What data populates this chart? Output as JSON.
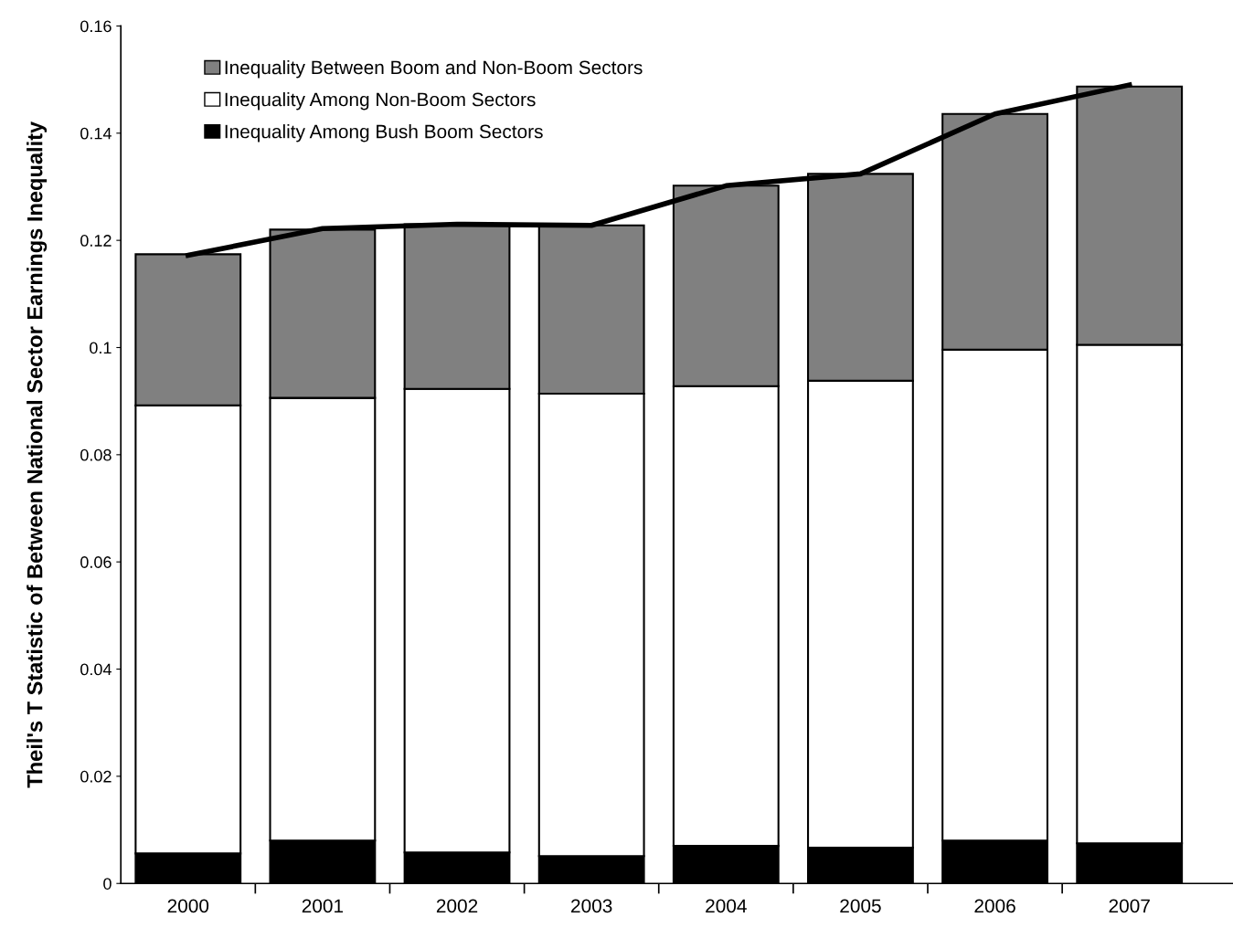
{
  "chart_data": {
    "type": "bar",
    "stacked": true,
    "ylabel": "Theil's T Statistic of Between National Sector Earnings Inequality",
    "categories": [
      "2000",
      "2001",
      "2002",
      "2003",
      "2004",
      "2005",
      "2006",
      "2007"
    ],
    "series": [
      {
        "name": "Inequality Among Bush Boom Sectors",
        "color": "#000000",
        "values": [
          0.0056,
          0.008,
          0.0058,
          0.0051,
          0.007,
          0.0067,
          0.008,
          0.0075
        ]
      },
      {
        "name": "Inequality Among Non-Boom Sectors",
        "color": "#ffffff",
        "values": [
          0.0836,
          0.0826,
          0.0865,
          0.0863,
          0.0858,
          0.0871,
          0.0916,
          0.093
        ]
      },
      {
        "name": "Inequality Between Boom and Non-Boom Sectors",
        "color": "#808080",
        "values": [
          0.0282,
          0.0314,
          0.0307,
          0.0314,
          0.0374,
          0.0386,
          0.044,
          0.0482
        ]
      },
      {
        "type": "line",
        "color": "#000000",
        "values": [
          0.1172,
          0.1222,
          0.123,
          0.1228,
          0.1302,
          0.1324,
          0.1436,
          0.149
        ]
      }
    ],
    "ylim": [
      0,
      0.16
    ],
    "yticks": [
      0,
      0.02,
      0.04,
      0.06,
      0.08,
      0.1,
      0.12,
      0.14,
      0.16
    ],
    "grid": false,
    "legend": "top left",
    "marker": "none",
    "line_style": "solid"
  }
}
